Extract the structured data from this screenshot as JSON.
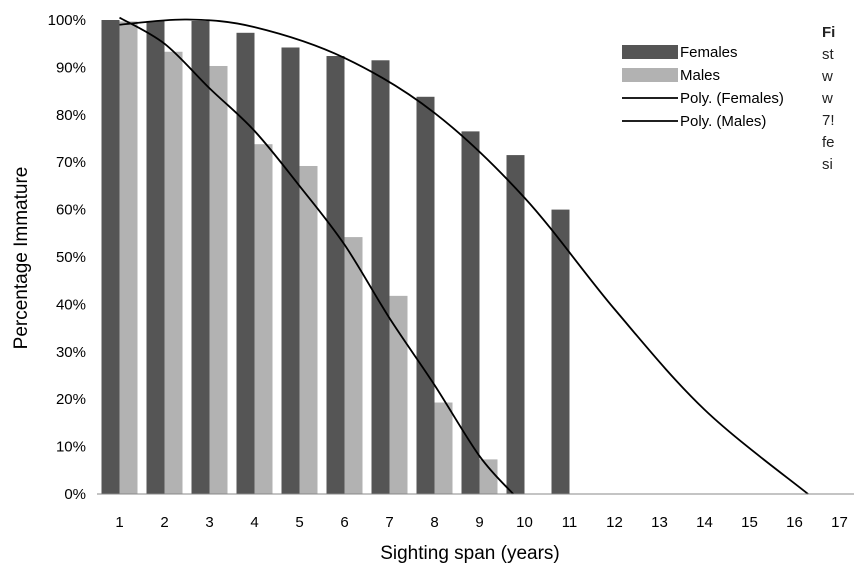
{
  "chart_data": {
    "type": "bar",
    "xlabel": "Sighting span (years)",
    "ylabel": "Percentage Immature",
    "categories": [
      "1",
      "2",
      "3",
      "4",
      "5",
      "6",
      "7",
      "8",
      "9",
      "10",
      "11",
      "12",
      "13",
      "14",
      "15",
      "16",
      "17"
    ],
    "ylim": [
      0,
      100
    ],
    "yticks": [
      "0%",
      "10%",
      "20%",
      "30%",
      "40%",
      "50%",
      "60%",
      "70%",
      "80%",
      "90%",
      "100%"
    ],
    "series": [
      {
        "name": "Females",
        "color": "#555555",
        "values": [
          100,
          99.8,
          99.8,
          97.3,
          94.2,
          92.4,
          91.5,
          83.8,
          76.5,
          71.5,
          60,
          null,
          null,
          null,
          null,
          null,
          null
        ]
      },
      {
        "name": "Males",
        "color": "#b2b2b2",
        "values": [
          99.7,
          93.3,
          90.3,
          73.8,
          69.2,
          54.2,
          41.8,
          19.3,
          7.3,
          null,
          null,
          null,
          null,
          null,
          null,
          null,
          null
        ]
      }
    ],
    "trendlines": [
      {
        "name": "Poly. (Females)",
        "color": "#000000",
        "points": [
          [
            1,
            99.0
          ],
          [
            2.5,
            100.1
          ],
          [
            4,
            98.5
          ],
          [
            6,
            92.0
          ],
          [
            8,
            80.4
          ],
          [
            10,
            62.5
          ],
          [
            12,
            39.0
          ],
          [
            14,
            17.8
          ],
          [
            16.3,
            0
          ]
        ]
      },
      {
        "name": "Poly. (Males)",
        "color": "#000000",
        "points": [
          [
            1,
            100.5
          ],
          [
            2,
            95.0
          ],
          [
            3,
            85.6
          ],
          [
            4,
            76.6
          ],
          [
            5,
            65.0
          ],
          [
            6,
            52.6
          ],
          [
            7,
            37.1
          ],
          [
            8,
            23.0
          ],
          [
            9,
            8.0
          ],
          [
            9.75,
            0
          ]
        ]
      }
    ],
    "legend_position": "top-right",
    "grid": false
  },
  "caption": {
    "lines": [
      "Fi",
      "st",
      "w",
      "w",
      "7!",
      "fe",
      "si"
    ]
  }
}
